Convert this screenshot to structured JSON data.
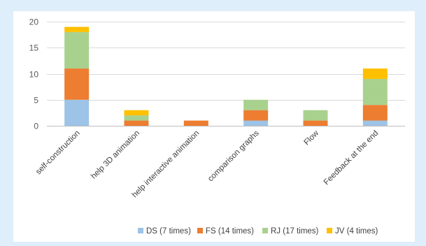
{
  "chart_data": {
    "type": "bar",
    "stacked": true,
    "categories": [
      "self-construction",
      "help 3D animation",
      "help interactive animation",
      "comparison graphs",
      "Flow",
      "Feedback at the end"
    ],
    "series": [
      {
        "name": "DS (7 times)",
        "color": "#9dc3e6",
        "values": [
          5,
          0,
          0,
          1,
          0,
          1
        ]
      },
      {
        "name": "FS (14 times)",
        "color": "#ed7d31",
        "values": [
          6,
          1,
          1,
          2,
          1,
          3
        ]
      },
      {
        "name": "RJ (17 times)",
        "color": "#a9d18e",
        "values": [
          7,
          1,
          0,
          2,
          2,
          5
        ]
      },
      {
        "name": "JV (4 times)",
        "color": "#ffc000",
        "values": [
          1,
          1,
          0,
          0,
          0,
          2
        ]
      }
    ],
    "ylim": [
      0,
      20
    ],
    "yticks": [
      0,
      5,
      10,
      15,
      20
    ],
    "grid": true,
    "legend": "bottom"
  }
}
